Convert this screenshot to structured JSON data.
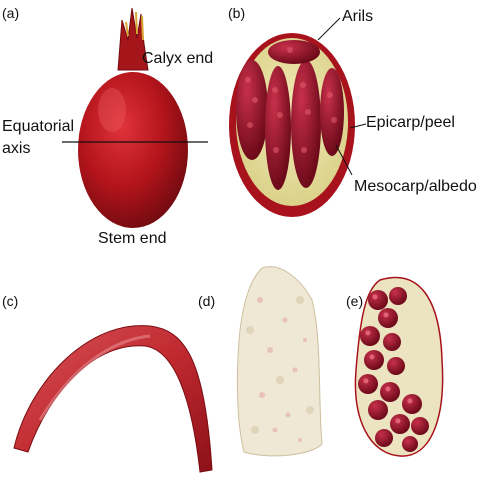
{
  "panels": {
    "a": "(a)",
    "b": "(b)",
    "c": "(c)",
    "d": "(d)",
    "e": "(e)"
  },
  "labels": {
    "calyx_end": "Calyx end",
    "equatorial": "Equatorial",
    "axis": "axis",
    "stem_end": "Stem end",
    "arils": "Arils",
    "epicarp": "Epicarp/peel",
    "mesocarp": "Mesocarp/albedo"
  },
  "colors": {
    "peel": "#b3141b",
    "peel_dark": "#7c0d12",
    "aril": "#8a0f22",
    "albedo": "#ece3a8",
    "pith": "#efe8d4"
  }
}
